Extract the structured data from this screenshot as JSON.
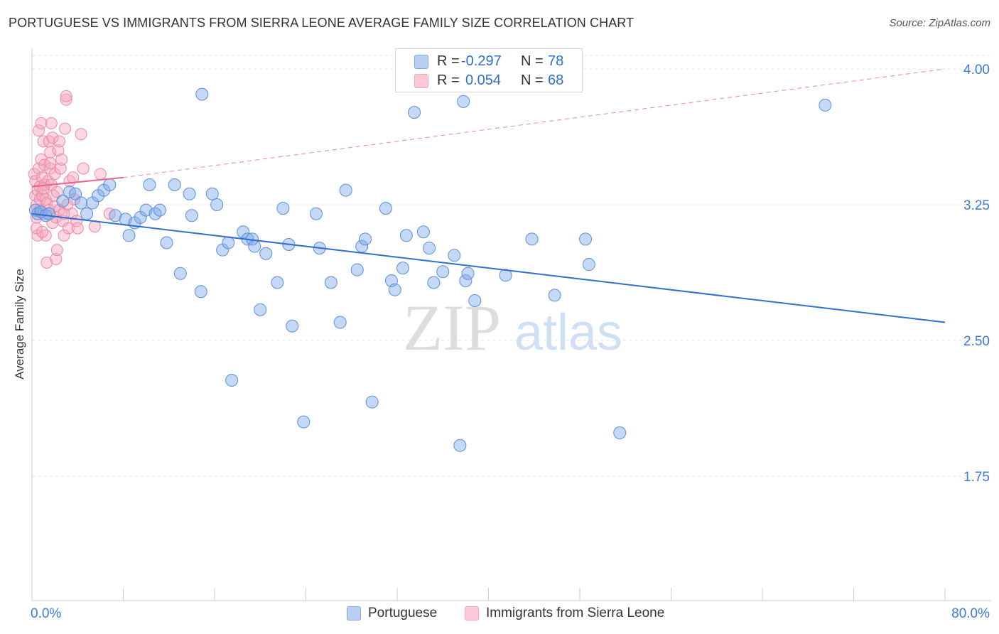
{
  "title": "PORTUGUESE VS IMMIGRANTS FROM SIERRA LEONE AVERAGE FAMILY SIZE CORRELATION CHART",
  "source": "Source: ZipAtlas.com",
  "watermark": {
    "zip": "ZIP",
    "atlas": "atlas"
  },
  "legend_stats": [
    {
      "r_label": "R =",
      "r_value": "-0.297",
      "n_label": "N =",
      "n_value": "78"
    },
    {
      "r_label": "R =",
      "r_value": "0.054",
      "n_label": "N =",
      "n_value": "68"
    }
  ],
  "colors": {
    "blue": "#7fa8e8",
    "blue_stroke": "#5b8fdc",
    "blue_line": "#2f6fce",
    "pink": "#f4a7bd",
    "pink_stroke": "#e98aa6",
    "pink_line": "#e5658f",
    "tick_label": "#3d7bd6"
  },
  "chart_data": {
    "type": "scatter",
    "title": "PORTUGUESE VS IMMIGRANTS FROM SIERRA LEONE AVERAGE FAMILY SIZE CORRELATION CHART",
    "xlabel": "",
    "ylabel": "Average Family Size",
    "xlim": [
      0,
      80
    ],
    "ylim": [
      1.0,
      4.15
    ],
    "x_tick_labels": [
      "0.0%",
      "80.0%"
    ],
    "y_ticks": [
      1.75,
      2.5,
      3.25,
      4.0
    ],
    "y_tick_labels": [
      "1.75",
      "2.50",
      "3.25",
      "4.00"
    ],
    "grid": true,
    "legend": "bottom-center",
    "series": [
      {
        "name": "Portuguese",
        "color": "#7fa8e8",
        "trend": {
          "x": [
            0,
            80
          ],
          "y": [
            3.2,
            2.6
          ]
        },
        "points": [
          [
            0.3,
            3.22
          ],
          [
            0.5,
            3.2
          ],
          [
            0.8,
            3.21
          ],
          [
            1.2,
            3.19
          ],
          [
            1.5,
            3.2
          ],
          [
            2.7,
            3.27
          ],
          [
            3.3,
            3.32
          ],
          [
            3.8,
            3.31
          ],
          [
            4.3,
            3.26
          ],
          [
            4.8,
            3.2
          ],
          [
            5.3,
            3.26
          ],
          [
            5.8,
            3.3
          ],
          [
            6.3,
            3.33
          ],
          [
            6.8,
            3.36
          ],
          [
            7.3,
            3.19
          ],
          [
            8.2,
            3.17
          ],
          [
            8.5,
            3.08
          ],
          [
            9.0,
            3.15
          ],
          [
            9.5,
            3.18
          ],
          [
            10.0,
            3.22
          ],
          [
            10.3,
            3.36
          ],
          [
            10.8,
            3.2
          ],
          [
            11.2,
            3.22
          ],
          [
            11.8,
            3.04
          ],
          [
            12.5,
            3.36
          ],
          [
            13.0,
            2.87
          ],
          [
            13.8,
            3.31
          ],
          [
            14.0,
            3.19
          ],
          [
            14.8,
            2.77
          ],
          [
            14.9,
            3.86
          ],
          [
            15.8,
            3.31
          ],
          [
            16.2,
            3.25
          ],
          [
            16.7,
            3.0
          ],
          [
            17.2,
            3.04
          ],
          [
            17.5,
            2.28
          ],
          [
            18.5,
            3.1
          ],
          [
            18.9,
            3.06
          ],
          [
            19.3,
            3.06
          ],
          [
            19.5,
            3.02
          ],
          [
            20.0,
            2.67
          ],
          [
            20.5,
            2.98
          ],
          [
            21.5,
            2.82
          ],
          [
            22.0,
            3.23
          ],
          [
            22.5,
            3.03
          ],
          [
            22.8,
            2.58
          ],
          [
            23.8,
            2.05
          ],
          [
            24.9,
            3.2
          ],
          [
            25.2,
            3.01
          ],
          [
            26.2,
            2.82
          ],
          [
            27.0,
            2.6
          ],
          [
            27.5,
            3.33
          ],
          [
            28.5,
            2.89
          ],
          [
            28.9,
            3.02
          ],
          [
            29.2,
            3.06
          ],
          [
            29.8,
            2.16
          ],
          [
            31.0,
            3.23
          ],
          [
            31.5,
            2.83
          ],
          [
            31.8,
            2.78
          ],
          [
            32.5,
            2.9
          ],
          [
            32.8,
            3.08
          ],
          [
            33.5,
            3.76
          ],
          [
            34.3,
            3.1
          ],
          [
            34.8,
            3.01
          ],
          [
            35.2,
            2.82
          ],
          [
            36.0,
            2.88
          ],
          [
            37.0,
            2.97
          ],
          [
            37.5,
            1.92
          ],
          [
            37.8,
            3.82
          ],
          [
            38.0,
            2.83
          ],
          [
            38.2,
            2.87
          ],
          [
            38.8,
            2.72
          ],
          [
            41.5,
            2.86
          ],
          [
            43.8,
            3.06
          ],
          [
            45.8,
            2.75
          ],
          [
            48.5,
            3.06
          ],
          [
            48.8,
            2.92
          ],
          [
            51.5,
            1.99
          ],
          [
            69.5,
            3.8
          ]
        ]
      },
      {
        "name": "Immigrants from Sierra Leone",
        "color": "#f4a7bd",
        "trend_solid": {
          "x": [
            0,
            8
          ],
          "y": [
            3.35,
            3.4
          ]
        },
        "trend_dashed": {
          "x": [
            8,
            80
          ],
          "y": [
            3.4,
            4.0
          ]
        },
        "points": [
          [
            0.2,
            3.42
          ],
          [
            0.3,
            3.38
          ],
          [
            0.3,
            3.3
          ],
          [
            0.4,
            3.25
          ],
          [
            0.4,
            3.18
          ],
          [
            0.5,
            3.08
          ],
          [
            0.5,
            3.33
          ],
          [
            0.6,
            3.66
          ],
          [
            0.6,
            3.45
          ],
          [
            0.7,
            3.35
          ],
          [
            0.7,
            3.28
          ],
          [
            0.7,
            3.22
          ],
          [
            0.8,
            3.7
          ],
          [
            0.8,
            3.5
          ],
          [
            0.9,
            3.4
          ],
          [
            0.9,
            3.3
          ],
          [
            1.0,
            3.6
          ],
          [
            1.0,
            3.2
          ],
          [
            1.1,
            3.47
          ],
          [
            1.1,
            3.36
          ],
          [
            1.2,
            3.28
          ],
          [
            1.2,
            3.08
          ],
          [
            1.3,
            2.93
          ],
          [
            1.3,
            3.26
          ],
          [
            1.4,
            3.38
          ],
          [
            1.5,
            3.6
          ],
          [
            1.5,
            3.22
          ],
          [
            1.6,
            3.54
          ],
          [
            1.6,
            3.45
          ],
          [
            1.7,
            3.7
          ],
          [
            1.7,
            3.36
          ],
          [
            1.8,
            3.62
          ],
          [
            1.8,
            3.15
          ],
          [
            1.9,
            3.3
          ],
          [
            2.0,
            3.24
          ],
          [
            2.0,
            3.42
          ],
          [
            2.1,
            3.18
          ],
          [
            2.1,
            2.95
          ],
          [
            2.2,
            3.0
          ],
          [
            2.3,
            3.55
          ],
          [
            2.4,
            3.6
          ],
          [
            2.4,
            3.22
          ],
          [
            2.5,
            3.45
          ],
          [
            2.6,
            3.5
          ],
          [
            2.7,
            3.16
          ],
          [
            2.8,
            3.08
          ],
          [
            2.9,
            3.67
          ],
          [
            3.0,
            3.83
          ],
          [
            3.0,
            3.85
          ],
          [
            3.1,
            3.25
          ],
          [
            3.2,
            3.12
          ],
          [
            3.3,
            3.38
          ],
          [
            3.5,
            3.2
          ],
          [
            3.7,
            3.28
          ],
          [
            3.9,
            3.16
          ],
          [
            4.0,
            3.12
          ],
          [
            4.3,
            3.64
          ],
          [
            4.5,
            3.45
          ],
          [
            5.5,
            3.13
          ],
          [
            6.0,
            3.42
          ],
          [
            6.8,
            3.2
          ],
          [
            0.4,
            3.12
          ],
          [
            1.0,
            3.34
          ],
          [
            2.2,
            3.32
          ],
          [
            1.6,
            3.48
          ],
          [
            0.9,
            3.1
          ],
          [
            2.8,
            3.2
          ],
          [
            3.6,
            3.4
          ]
        ]
      }
    ]
  }
}
